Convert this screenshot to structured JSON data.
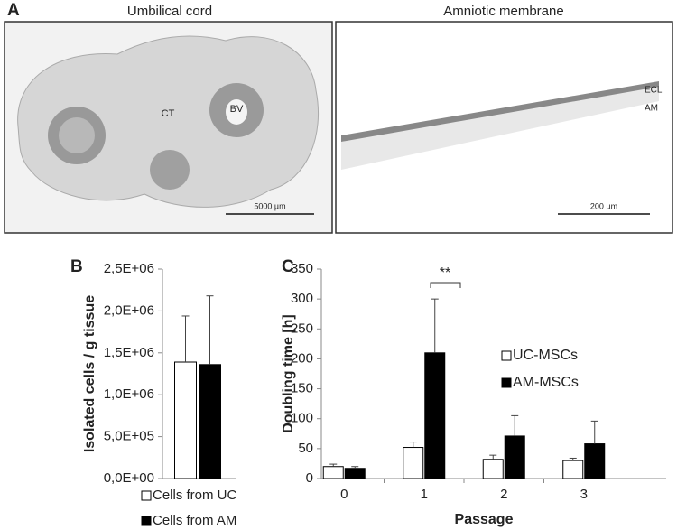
{
  "figure": {
    "panel": "A",
    "left_title": "Umbilical cord",
    "right_title": "Amniotic membrane",
    "left_labels": [
      "CT",
      "BV"
    ],
    "left_scale": "5000 µm",
    "right_labels": [
      "ECL",
      "AM"
    ],
    "right_scale": "200 µm"
  },
  "chart_data": [
    {
      "type": "bar",
      "panel": "B",
      "y_label": "Isolated cells / g tissue",
      "ylim": [
        0,
        2500000
      ],
      "yticks": [
        {
          "value": 0,
          "label": "0,0E+00"
        },
        {
          "value": 500000,
          "label": "5,0E+05"
        },
        {
          "value": 1000000,
          "label": "1,0E+06"
        },
        {
          "value": 1500000,
          "label": "1,5E+06"
        },
        {
          "value": 2000000,
          "label": "2,0E+06"
        },
        {
          "value": 2500000,
          "label": "2,5E+06"
        }
      ],
      "series": [
        {
          "name": "Cells from UC",
          "color": "#ffffff",
          "values": [
            1390000
          ],
          "errors": [
            550000
          ]
        },
        {
          "name": "Cells from AM",
          "color": "#000000",
          "values": [
            1360000
          ],
          "errors": [
            820000
          ]
        }
      ]
    },
    {
      "type": "bar",
      "panel": "C",
      "y_label": "Doubling time [h]",
      "x_label": "Passage",
      "categories": [
        "0",
        "1",
        "2",
        "3"
      ],
      "ylim": [
        0,
        350
      ],
      "yticks": [
        0,
        50,
        100,
        150,
        200,
        250,
        300,
        350
      ],
      "annotation": "**",
      "series": [
        {
          "name": "UC-MSCs",
          "color": "#ffffff",
          "values": [
            20,
            52,
            32,
            30
          ],
          "errors": [
            4,
            9,
            7,
            4
          ]
        },
        {
          "name": "AM-MSCs",
          "color": "#000000",
          "values": [
            17,
            210,
            71,
            58
          ],
          "errors": [
            3,
            90,
            34,
            38
          ]
        }
      ]
    }
  ]
}
